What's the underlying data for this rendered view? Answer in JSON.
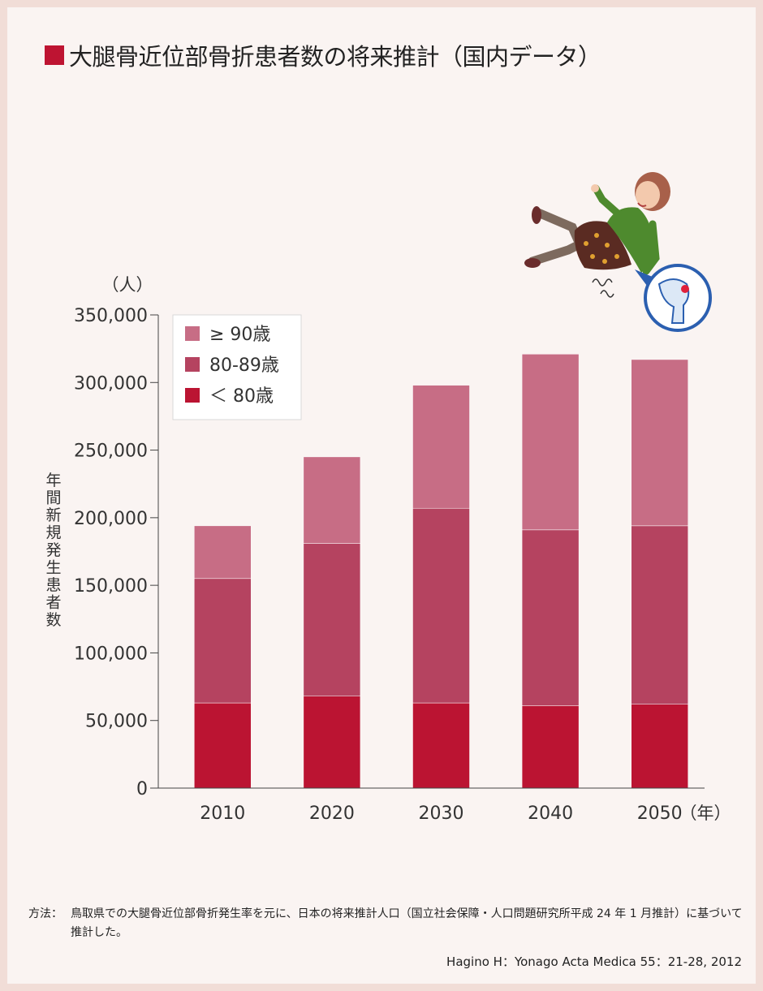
{
  "title": "大腿骨近位部骨折患者数の将来推計（国内データ）",
  "colors": {
    "accent": "#be1432",
    "lt80": "#bb1432",
    "a80_89": "#b54360",
    "ge90": "#c76d85"
  },
  "chart_data": {
    "type": "bar",
    "stacked": true,
    "title": "大腿骨近位部骨折患者数の将来推計（国内データ）",
    "categories": [
      "2010",
      "2020",
      "2030",
      "2040",
      "2050"
    ],
    "x_unit": "（年）",
    "y_unit": "（人）",
    "ylabel": "年間新規発生患者数",
    "ylim": [
      0,
      350000
    ],
    "yticks": [
      "0",
      "50,000",
      "100,000",
      "150,000",
      "200,000",
      "250,000",
      "300,000",
      "350,000"
    ],
    "legend_position": "top-left",
    "series": [
      {
        "name": "＜ 80歳",
        "values": [
          63000,
          68000,
          63000,
          61000,
          62000
        ]
      },
      {
        "name": "80-89歳",
        "values": [
          92000,
          113000,
          144000,
          130000,
          132000
        ]
      },
      {
        "name": "≥ 90歳",
        "values": [
          39000,
          64000,
          91000,
          130000,
          123000
        ]
      }
    ]
  },
  "illustration": {
    "name": "falling-woman-hip-fracture-illustration"
  },
  "footnote": {
    "label": "方法：",
    "text": "鳥取県での大腿骨近位部骨折発生率を元に、日本の将来推計人口（国立社会保障・人口問題研究所平成 24 年 1 月推計）に基づいて推計した。"
  },
  "citation": "Hagino H：Yonago Acta Medica 55：21-28, 2012"
}
